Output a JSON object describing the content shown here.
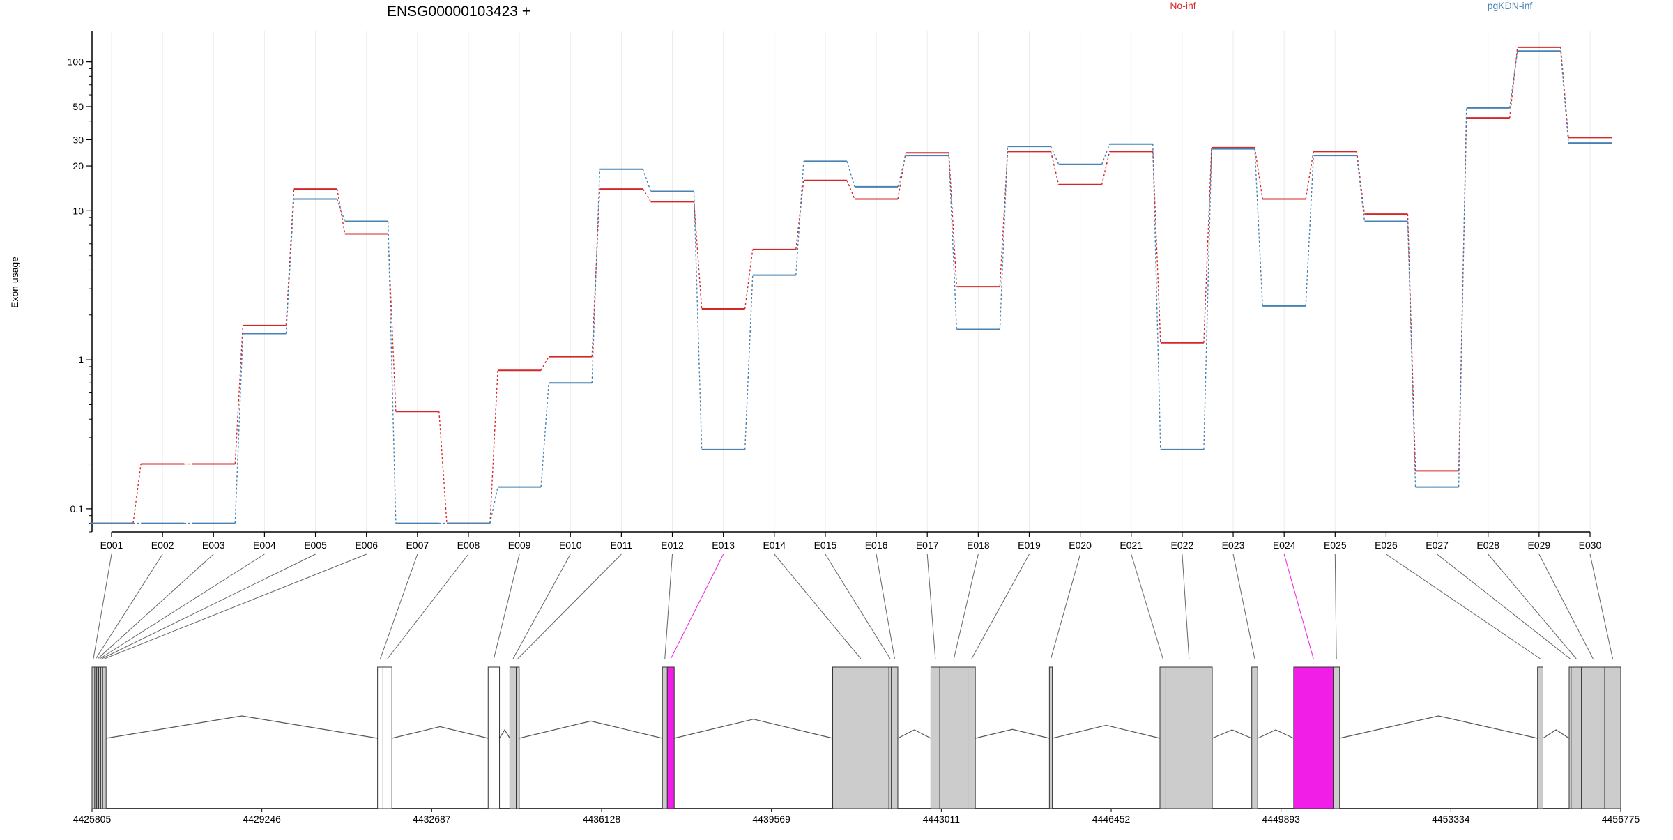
{
  "chart_data": {
    "type": "line",
    "title": "ENSG00000103423 +",
    "xlabel": "",
    "ylabel": "Exon usage",
    "yscale": "log",
    "ylim": [
      0.07,
      160
    ],
    "yticks": [
      0.1,
      1,
      10,
      20,
      30,
      50,
      100
    ],
    "ytick_labels": [
      "0.1",
      "1",
      "10",
      "20",
      "30",
      "50",
      "100"
    ],
    "grid": "vertical-light",
    "legend_placement": "top",
    "categories": [
      "E001",
      "E002",
      "E003",
      "E004",
      "E005",
      "E006",
      "E007",
      "E008",
      "E009",
      "E010",
      "E011",
      "E012",
      "E013",
      "E014",
      "E015",
      "E016",
      "E017",
      "E018",
      "E019",
      "E020",
      "E021",
      "E022",
      "E023",
      "E024",
      "E025",
      "E026",
      "E027",
      "E028",
      "E029",
      "E030"
    ],
    "series": [
      {
        "name": "No-inf",
        "color": "#d62728",
        "values": [
          0.08,
          0.2,
          0.2,
          1.7,
          14,
          7,
          0.45,
          0.08,
          0.85,
          1.05,
          14,
          11.5,
          2.2,
          5.5,
          16,
          12,
          24.5,
          3.1,
          25,
          15,
          25,
          1.3,
          26.5,
          12,
          25,
          9.5,
          0.18,
          42,
          125,
          31
        ]
      },
      {
        "name": "pgKDN-inf",
        "color": "#4682b4",
        "values": [
          0.08,
          0.08,
          0.08,
          1.5,
          12,
          8.5,
          0.08,
          0.08,
          0.14,
          0.7,
          19,
          13.5,
          0.25,
          3.7,
          21.5,
          14.5,
          23.5,
          1.6,
          27,
          20.5,
          28,
          0.25,
          26,
          2.3,
          23.5,
          8.5,
          0.14,
          49,
          118,
          28.5
        ]
      }
    ],
    "gene_model": {
      "coordinate_start": 4425805,
      "coordinate_end": 4456775,
      "axis_ticks": [
        4425805,
        4429246,
        4432687,
        4436128,
        4439569,
        4443011,
        4446452,
        4449893,
        4453334,
        4456775
      ],
      "axis_tick_labels": [
        "4425805",
        "4429246",
        "4432687",
        "4436128",
        "4439569",
        "4443011",
        "4446452",
        "4449893",
        "4453334",
        "4456775"
      ],
      "highlight_color": "#f01ee6",
      "exon_color": "#cccccc",
      "exons": [
        {
          "id": "E001",
          "start": 4425805,
          "end": 4425860,
          "fill": "gray"
        },
        {
          "id": "E002",
          "start": 4425860,
          "end": 4425900,
          "fill": "gray"
        },
        {
          "id": "E003",
          "start": 4425900,
          "end": 4425940,
          "fill": "gray"
        },
        {
          "id": "E004",
          "start": 4425940,
          "end": 4425980,
          "fill": "gray"
        },
        {
          "id": "E005",
          "start": 4425980,
          "end": 4426020,
          "fill": "gray"
        },
        {
          "id": "E006",
          "start": 4426020,
          "end": 4426090,
          "fill": "gray"
        },
        {
          "id": "E007",
          "start": 4431590,
          "end": 4431700,
          "fill": "white"
        },
        {
          "id": "E008",
          "start": 4431700,
          "end": 4431880,
          "fill": "white"
        },
        {
          "id": "E009",
          "start": 4433830,
          "end": 4434060,
          "fill": "white"
        },
        {
          "id": "E010",
          "start": 4434270,
          "end": 4434400,
          "fill": "gray"
        },
        {
          "id": "E011",
          "start": 4434400,
          "end": 4434460,
          "fill": "gray"
        },
        {
          "id": "E012",
          "start": 4437360,
          "end": 4437460,
          "fill": "gray"
        },
        {
          "id": "E013",
          "start": 4437460,
          "end": 4437600,
          "fill": "magenta"
        },
        {
          "id": "E014",
          "start": 4440810,
          "end": 4441950,
          "fill": "gray"
        },
        {
          "id": "E015",
          "start": 4441950,
          "end": 4442000,
          "fill": "gray"
        },
        {
          "id": "E016",
          "start": 4442000,
          "end": 4442130,
          "fill": "gray"
        },
        {
          "id": "E017",
          "start": 4442800,
          "end": 4442980,
          "fill": "gray"
        },
        {
          "id": "E018",
          "start": 4442980,
          "end": 4443550,
          "fill": "gray"
        },
        {
          "id": "E019",
          "start": 4443550,
          "end": 4443700,
          "fill": "gray"
        },
        {
          "id": "E020",
          "start": 4445200,
          "end": 4445260,
          "fill": "gray"
        },
        {
          "id": "E021",
          "start": 4447440,
          "end": 4447560,
          "fill": "gray"
        },
        {
          "id": "E022",
          "start": 4447560,
          "end": 4448500,
          "fill": "gray"
        },
        {
          "id": "E023",
          "start": 4449300,
          "end": 4449420,
          "fill": "gray"
        },
        {
          "id": "E024",
          "start": 4450150,
          "end": 4450950,
          "fill": "magenta"
        },
        {
          "id": "E025",
          "start": 4450950,
          "end": 4451080,
          "fill": "gray"
        },
        {
          "id": "E026",
          "start": 4455090,
          "end": 4455200,
          "fill": "gray"
        },
        {
          "id": "E027",
          "start": 4455730,
          "end": 4455770,
          "fill": "gray"
        },
        {
          "id": "E028",
          "start": 4455770,
          "end": 4455980,
          "fill": "gray"
        },
        {
          "id": "E029",
          "start": 4455980,
          "end": 4456450,
          "fill": "gray"
        },
        {
          "id": "E030",
          "start": 4456450,
          "end": 4456775,
          "fill": "gray"
        }
      ],
      "junctions": [
        [
          4426090,
          4431590
        ],
        [
          4431880,
          4433830
        ],
        [
          4434060,
          4434270
        ],
        [
          4434460,
          4437360
        ],
        [
          4437600,
          4440810
        ],
        [
          4442130,
          4442800
        ],
        [
          4443700,
          4445200
        ],
        [
          4445260,
          4447440
        ],
        [
          4448500,
          4449300
        ],
        [
          4449420,
          4450150
        ],
        [
          4451080,
          4455090
        ],
        [
          4455200,
          4455730
        ]
      ]
    }
  }
}
